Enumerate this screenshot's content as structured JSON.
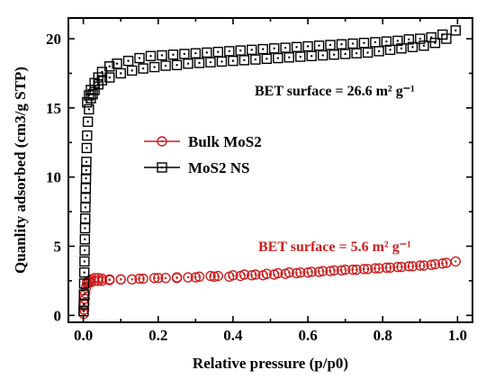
{
  "chart_data": {
    "type": "scatter",
    "xlabel": "Relative pressure (p/p0)",
    "ylabel": "Quanlity adsorbed (cm3/g STP)",
    "xlim": [
      -0.04,
      1.04
    ],
    "ylim": [
      -0.5,
      21.5
    ],
    "xticks": [
      "0.0",
      "0.2",
      "0.4",
      "0.6",
      "0.8",
      "1.0"
    ],
    "yticks": [
      "0",
      "5",
      "10",
      "15",
      "20"
    ],
    "legend_position": "center-left",
    "grid": false,
    "annotations": [
      {
        "text": "BET surface = 26.6 m² g⁻¹",
        "color": "#000000"
      },
      {
        "text": "BET surface = 5.6 m² g⁻¹",
        "color": "#cc1f1f"
      }
    ],
    "series": [
      {
        "name": "Bulk MoS2",
        "marker": "circle-dot",
        "color": "#cc1f1f",
        "x": [
          0.001,
          0.002,
          0.003,
          0.004,
          0.005,
          0.007,
          0.01,
          0.015,
          0.02,
          0.03,
          0.04,
          0.05,
          0.07,
          0.1,
          0.13,
          0.16,
          0.19,
          0.22,
          0.25,
          0.28,
          0.31,
          0.34,
          0.36,
          0.4,
          0.43,
          0.46,
          0.49,
          0.52,
          0.55,
          0.58,
          0.61,
          0.64,
          0.67,
          0.7,
          0.73,
          0.76,
          0.79,
          0.82,
          0.85,
          0.88,
          0.91,
          0.94,
          0.97,
          0.995,
          0.96,
          0.93,
          0.9,
          0.87,
          0.84,
          0.81,
          0.78,
          0.75,
          0.72,
          0.69,
          0.66,
          0.63,
          0.6,
          0.57,
          0.54,
          0.51,
          0.48,
          0.45,
          0.42,
          0.39,
          0.35,
          0.3,
          0.25,
          0.2,
          0.15,
          0.1,
          0.07,
          0.05,
          0.04,
          0.03,
          0.02,
          0.015,
          0.01
        ],
        "y": [
          0.1,
          0.4,
          0.8,
          1.2,
          1.6,
          2.0,
          2.3,
          2.4,
          2.4,
          2.5,
          2.5,
          2.5,
          2.55,
          2.6,
          2.6,
          2.65,
          2.7,
          2.7,
          2.75,
          2.75,
          2.8,
          2.85,
          2.85,
          2.9,
          2.95,
          2.95,
          3.0,
          3.05,
          3.1,
          3.1,
          3.15,
          3.2,
          3.25,
          3.3,
          3.3,
          3.35,
          3.4,
          3.45,
          3.5,
          3.55,
          3.6,
          3.7,
          3.8,
          3.9,
          3.75,
          3.65,
          3.6,
          3.55,
          3.5,
          3.45,
          3.4,
          3.35,
          3.3,
          3.25,
          3.2,
          3.15,
          3.1,
          3.05,
          3.0,
          2.95,
          2.9,
          2.9,
          2.85,
          2.8,
          2.8,
          2.75,
          2.7,
          2.7,
          2.65,
          2.6,
          2.6,
          2.65,
          2.7,
          2.7,
          2.6,
          2.5,
          2.4
        ]
      },
      {
        "name": "MoS2 NS",
        "marker": "square-dot",
        "color": "#000000",
        "x": [
          0.0005,
          0.001,
          0.0015,
          0.002,
          0.0025,
          0.003,
          0.0035,
          0.004,
          0.0045,
          0.005,
          0.0055,
          0.006,
          0.0065,
          0.007,
          0.0075,
          0.008,
          0.009,
          0.01,
          0.012,
          0.015,
          0.02,
          0.025,
          0.03,
          0.04,
          0.05,
          0.07,
          0.1,
          0.13,
          0.16,
          0.19,
          0.22,
          0.25,
          0.28,
          0.31,
          0.34,
          0.37,
          0.4,
          0.43,
          0.46,
          0.49,
          0.52,
          0.55,
          0.58,
          0.61,
          0.64,
          0.67,
          0.7,
          0.73,
          0.76,
          0.79,
          0.82,
          0.85,
          0.88,
          0.91,
          0.94,
          0.97,
          0.995,
          0.96,
          0.93,
          0.9,
          0.87,
          0.84,
          0.81,
          0.78,
          0.75,
          0.72,
          0.69,
          0.66,
          0.63,
          0.6,
          0.57,
          0.54,
          0.51,
          0.48,
          0.45,
          0.42,
          0.39,
          0.36,
          0.33,
          0.3,
          0.27,
          0.24,
          0.21,
          0.18,
          0.15,
          0.12,
          0.09,
          0.07,
          0.05,
          0.04,
          0.03,
          0.02,
          0.015,
          0.01
        ],
        "y": [
          0.3,
          0.8,
          1.5,
          2.3,
          3.1,
          3.9,
          4.7,
          5.5,
          6.3,
          7.0,
          7.8,
          8.5,
          9.2,
          9.9,
          10.5,
          11.1,
          12.1,
          13.0,
          14.0,
          14.9,
          15.7,
          16.0,
          16.3,
          16.7,
          17.0,
          17.2,
          17.5,
          17.7,
          17.85,
          17.95,
          18.05,
          18.1,
          18.2,
          18.25,
          18.3,
          18.35,
          18.4,
          18.45,
          18.5,
          18.55,
          18.6,
          18.65,
          18.7,
          18.75,
          18.8,
          18.85,
          18.9,
          18.95,
          19.0,
          19.1,
          19.2,
          19.3,
          19.4,
          19.5,
          19.7,
          20.0,
          20.6,
          20.3,
          20.1,
          20.0,
          19.95,
          19.85,
          19.8,
          19.75,
          19.7,
          19.65,
          19.6,
          19.55,
          19.5,
          19.45,
          19.4,
          19.35,
          19.3,
          19.25,
          19.2,
          19.15,
          19.1,
          19.05,
          19.0,
          18.95,
          18.9,
          18.85,
          18.8,
          18.75,
          18.6,
          18.4,
          18.2,
          18.0,
          17.6,
          17.2,
          16.8,
          16.3,
          15.9,
          15.4
        ]
      }
    ]
  }
}
